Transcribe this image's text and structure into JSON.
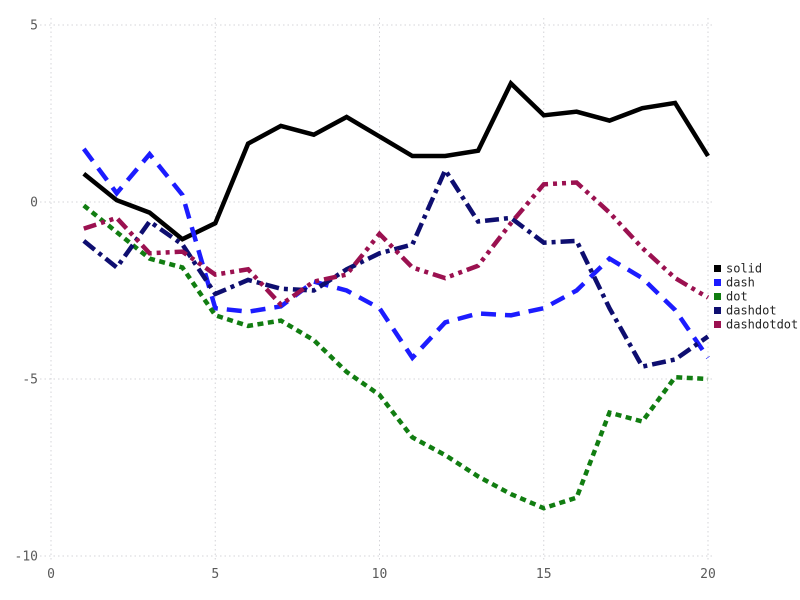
{
  "chart_data": {
    "type": "line",
    "title": "",
    "xlabel": "",
    "ylabel": "",
    "xlim": [
      0,
      20
    ],
    "ylim": [
      -10,
      5
    ],
    "grid": true,
    "legend_position": "right-outside",
    "x_ticks": [
      0,
      5,
      10,
      15,
      20
    ],
    "x_tick_labels": [
      "0",
      "5",
      "10",
      "15",
      "20"
    ],
    "y_ticks": [
      5,
      0,
      -5,
      -10
    ],
    "y_tick_labels": [
      "5",
      "0",
      "-5",
      "-10"
    ],
    "x": [
      1,
      2,
      3,
      4,
      5,
      6,
      7,
      8,
      9,
      10,
      11,
      12,
      13,
      14,
      15,
      16,
      17,
      18,
      19,
      20
    ],
    "series": [
      {
        "name": "solid",
        "line_style": "solid",
        "color": "#000000",
        "values": [
          0.8,
          0.05,
          -0.3,
          -1.05,
          -0.6,
          1.65,
          2.15,
          1.9,
          2.4,
          1.85,
          1.3,
          1.3,
          1.45,
          3.35,
          2.45,
          2.55,
          2.3,
          2.65,
          2.8,
          1.3
        ]
      },
      {
        "name": "dash",
        "line_style": "dash",
        "color": "#1c1cff",
        "values": [
          1.5,
          0.25,
          1.35,
          0.2,
          -3.0,
          -3.1,
          -2.95,
          -2.25,
          -2.5,
          -3.0,
          -4.4,
          -3.4,
          -3.15,
          -3.2,
          -3.0,
          -2.5,
          -1.6,
          -2.15,
          -3.05,
          -4.4
        ]
      },
      {
        "name": "dot",
        "line_style": "dot",
        "color": "#117d11",
        "values": [
          -0.1,
          -0.85,
          -1.6,
          -1.85,
          -3.2,
          -3.5,
          -3.35,
          -3.9,
          -4.8,
          -5.45,
          -6.65,
          -7.15,
          -7.75,
          -8.25,
          -8.65,
          -8.35,
          -5.95,
          -6.2,
          -4.95,
          -5.0
        ]
      },
      {
        "name": "dashdot",
        "line_style": "dashdot",
        "color": "#0e0e70",
        "values": [
          -1.1,
          -1.85,
          -0.55,
          -1.2,
          -2.6,
          -2.2,
          -2.45,
          -2.5,
          -1.9,
          -1.45,
          -1.2,
          0.9,
          -0.55,
          -0.45,
          -1.15,
          -1.1,
          -3.0,
          -4.65,
          -4.45,
          -3.8
        ]
      },
      {
        "name": "dashdotdot",
        "line_style": "dashdotdot",
        "color": "#9b1150",
        "values": [
          -0.75,
          -0.45,
          -1.45,
          -1.4,
          -2.05,
          -1.9,
          -2.9,
          -2.25,
          -2.05,
          -0.9,
          -1.85,
          -2.15,
          -1.8,
          -0.6,
          0.5,
          0.55,
          -0.3,
          -1.3,
          -2.15,
          -2.7
        ]
      }
    ]
  },
  "legend": {
    "items": [
      {
        "label": "solid",
        "color": "#000000"
      },
      {
        "label": "dash",
        "color": "#1c1cff"
      },
      {
        "label": "dot",
        "color": "#117d11"
      },
      {
        "label": "dashdot",
        "color": "#0e0e70"
      },
      {
        "label": "dashdotdot",
        "color": "#9b1150"
      }
    ]
  },
  "style_colors": {
    "background": "#ffffff",
    "grid": "#d4d4d8",
    "tick_label": "#5a5a5a",
    "legend_text": "#262626"
  }
}
